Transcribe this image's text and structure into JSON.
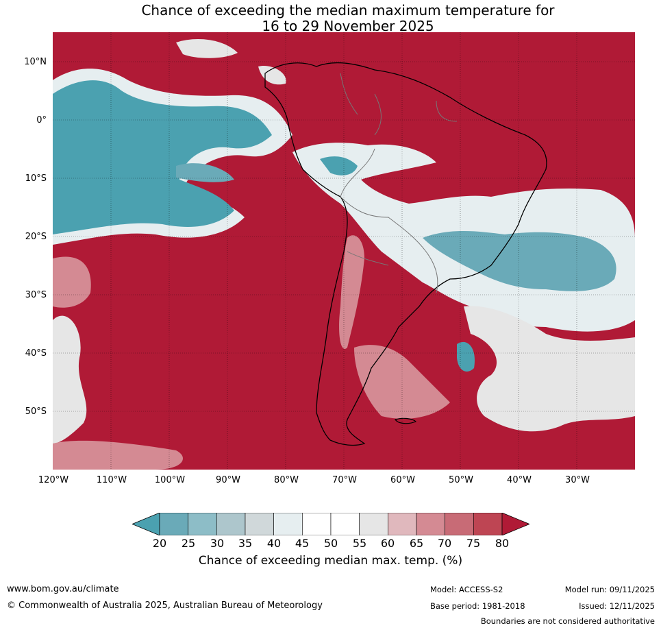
{
  "title": {
    "line1": "Chance of exceeding the median maximum temperature for",
    "line2": "16 to 29 November 2025"
  },
  "axes": {
    "latitude_labels": [
      "10°N",
      "0°",
      "10°S",
      "20°S",
      "30°S",
      "40°S",
      "50°S"
    ],
    "longitude_labels": [
      "120°W",
      "110°W",
      "100°W",
      "90°W",
      "80°W",
      "70°W",
      "60°W",
      "50°W",
      "40°W",
      "30°W"
    ]
  },
  "colorbar": {
    "ticks": [
      "20",
      "25",
      "30",
      "35",
      "40",
      "45",
      "50",
      "55",
      "60",
      "65",
      "70",
      "75",
      "80"
    ],
    "colors": [
      "#4ba1b0",
      "#6aaab8",
      "#8dbdc7",
      "#adc6cc",
      "#d0d8da",
      "#e6eef0",
      "#ffffff",
      "#ffffff",
      "#e6e6e6",
      "#e0b8bd",
      "#d48a93",
      "#c86b76",
      "#be4553",
      "#b01a36"
    ],
    "label": "Chance of exceeding median max. temp. (%)"
  },
  "map_colors": {
    "ocean_warm": "#b01a36",
    "cool": "#4ba1b0",
    "neutral": "#ffffff",
    "pink": "#d48a93",
    "light_blue": "#d0d8da"
  },
  "footer": {
    "website": "www.bom.gov.au/climate",
    "copyright": "© Commonwealth of Australia 2025, Australian Bureau of Meteorology",
    "model": "Model: ACCESS-S2",
    "base_period": "Base period: 1981-2018",
    "model_run": "Model run: 09/11/2025",
    "issued": "Issued: 12/11/2025",
    "disclaimer": "Boundaries are not considered authoritative"
  }
}
